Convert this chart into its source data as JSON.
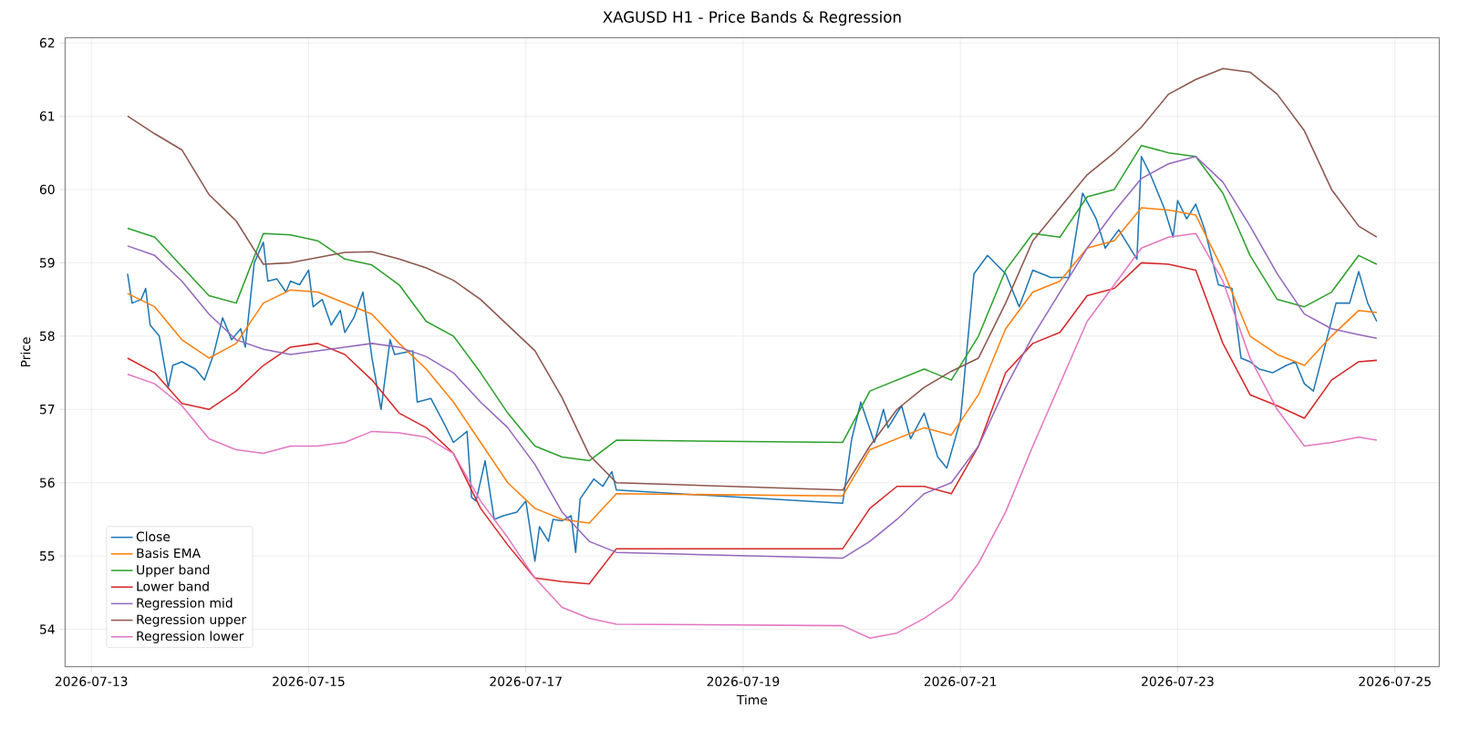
{
  "chart_data": {
    "type": "line",
    "title": "XAGUSD H1 - Price Bands & Regression",
    "xlabel": "Time",
    "ylabel": "Price",
    "x": [
      "2026-07-13T08:00",
      "2026-07-13T14:00",
      "2026-07-13T20:00",
      "2026-07-14T02:00",
      "2026-07-14T08:00",
      "2026-07-14T14:00",
      "2026-07-14T20:00",
      "2026-07-15T02:00",
      "2026-07-15T08:00",
      "2026-07-15T14:00",
      "2026-07-15T20:00",
      "2026-07-16T02:00",
      "2026-07-16T08:00",
      "2026-07-16T14:00",
      "2026-07-16T20:00",
      "2026-07-17T02:00",
      "2026-07-17T08:00",
      "2026-07-17T14:00",
      "2026-07-17T20:00",
      "2026-07-19T22:00",
      "2026-07-20T04:00",
      "2026-07-20T10:00",
      "2026-07-20T16:00",
      "2026-07-20T22:00",
      "2026-07-21T04:00",
      "2026-07-21T10:00",
      "2026-07-21T16:00",
      "2026-07-21T22:00",
      "2026-07-22T04:00",
      "2026-07-22T10:00",
      "2026-07-22T16:00",
      "2026-07-22T22:00",
      "2026-07-23T04:00",
      "2026-07-23T10:00",
      "2026-07-23T16:00",
      "2026-07-23T22:00",
      "2026-07-24T04:00",
      "2026-07-24T10:00",
      "2026-07-24T16:00",
      "2026-07-24T20:00"
    ],
    "series": [
      {
        "name": "Close",
        "color": "#1f77b4",
        "x": [
          "2026-07-13T08:00",
          "2026-07-13T09:00",
          "2026-07-13T11:00",
          "2026-07-13T12:00",
          "2026-07-13T13:00",
          "2026-07-13T15:00",
          "2026-07-13T17:00",
          "2026-07-13T18:00",
          "2026-07-13T20:00",
          "2026-07-13T23:00",
          "2026-07-14T01:00",
          "2026-07-14T03:00",
          "2026-07-14T05:00",
          "2026-07-14T07:00",
          "2026-07-14T09:00",
          "2026-07-14T10:00",
          "2026-07-14T12:00",
          "2026-07-14T14:00",
          "2026-07-14T15:00",
          "2026-07-14T17:00",
          "2026-07-14T19:00",
          "2026-07-14T20:00",
          "2026-07-14T22:00",
          "2026-07-15T00:00",
          "2026-07-15T01:00",
          "2026-07-15T03:00",
          "2026-07-15T05:00",
          "2026-07-15T07:00",
          "2026-07-15T08:00",
          "2026-07-15T10:00",
          "2026-07-15T12:00",
          "2026-07-15T14:00",
          "2026-07-15T16:00",
          "2026-07-15T18:00",
          "2026-07-15T19:00",
          "2026-07-15T23:00",
          "2026-07-16T00:00",
          "2026-07-16T03:00",
          "2026-07-16T06:00",
          "2026-07-16T08:00",
          "2026-07-16T11:00",
          "2026-07-16T12:00",
          "2026-07-16T13:00",
          "2026-07-16T15:00",
          "2026-07-16T17:00",
          "2026-07-16T19:00",
          "2026-07-16T22:00",
          "2026-07-17T00:00",
          "2026-07-17T02:00",
          "2026-07-17T03:00",
          "2026-07-17T05:00",
          "2026-07-17T06:00",
          "2026-07-17T08:00",
          "2026-07-17T10:00",
          "2026-07-17T11:00",
          "2026-07-17T12:00",
          "2026-07-17T15:00",
          "2026-07-17T17:00",
          "2026-07-17T19:00",
          "2026-07-17T20:00",
          "2026-07-19T22:00",
          "2026-07-20T00:00",
          "2026-07-20T02:00",
          "2026-07-20T05:00",
          "2026-07-20T07:00",
          "2026-07-20T08:00",
          "2026-07-20T11:00",
          "2026-07-20T13:00",
          "2026-07-20T16:00",
          "2026-07-20T19:00",
          "2026-07-20T21:00",
          "2026-07-21T00:00",
          "2026-07-21T03:00",
          "2026-07-21T06:00",
          "2026-07-21T10:00",
          "2026-07-21T13:00",
          "2026-07-21T16:00",
          "2026-07-21T20:00",
          "2026-07-22T00:00",
          "2026-07-22T03:00",
          "2026-07-22T06:00",
          "2026-07-22T08:00",
          "2026-07-22T11:00",
          "2026-07-22T13:00",
          "2026-07-22T15:00",
          "2026-07-22T16:00",
          "2026-07-22T18:00",
          "2026-07-22T21:00",
          "2026-07-22T23:00",
          "2026-07-23T00:00",
          "2026-07-23T02:00",
          "2026-07-23T04:00",
          "2026-07-23T06:00",
          "2026-07-23T09:00",
          "2026-07-23T12:00",
          "2026-07-23T14:00",
          "2026-07-23T16:00",
          "2026-07-23T18:00",
          "2026-07-23T21:00",
          "2026-07-24T00:00",
          "2026-07-24T02:00",
          "2026-07-24T04:00",
          "2026-07-24T06:00",
          "2026-07-24T11:00",
          "2026-07-24T14:00",
          "2026-07-24T16:00",
          "2026-07-24T18:00",
          "2026-07-24T20:00"
        ],
        "values": [
          58.85,
          58.45,
          58.5,
          58.65,
          58.15,
          58.0,
          57.3,
          57.6,
          57.65,
          57.55,
          57.4,
          57.75,
          58.25,
          57.95,
          58.1,
          57.85,
          59.0,
          59.28,
          58.75,
          58.78,
          58.6,
          58.75,
          58.7,
          58.9,
          58.4,
          58.5,
          58.15,
          58.35,
          58.05,
          58.25,
          58.6,
          57.7,
          57.0,
          57.95,
          57.75,
          57.8,
          57.1,
          57.15,
          56.8,
          56.55,
          56.7,
          55.8,
          55.75,
          56.3,
          55.5,
          55.55,
          55.6,
          55.75,
          54.93,
          55.4,
          55.2,
          55.5,
          55.48,
          55.55,
          55.05,
          55.78,
          56.05,
          55.95,
          56.15,
          55.9,
          55.72,
          56.6,
          57.1,
          56.55,
          57.0,
          56.75,
          57.05,
          56.6,
          56.95,
          56.35,
          56.2,
          56.85,
          58.85,
          59.1,
          58.85,
          58.4,
          58.9,
          58.8,
          58.8,
          59.95,
          59.6,
          59.2,
          59.45,
          59.25,
          59.05,
          60.45,
          60.2,
          59.75,
          59.35,
          59.85,
          59.6,
          59.8,
          59.45,
          58.7,
          58.65,
          57.7,
          57.65,
          57.55,
          57.5,
          57.6,
          57.65,
          57.35,
          57.25,
          58.45,
          58.45,
          58.88,
          58.45,
          58.2
        ]
      },
      {
        "name": "Basis EMA",
        "color": "#ff7f0e",
        "values": [
          58.58,
          58.4,
          57.95,
          57.7,
          57.9,
          58.45,
          58.63,
          58.6,
          58.45,
          58.3,
          57.9,
          57.55,
          57.1,
          56.55,
          56.0,
          55.65,
          55.5,
          55.45,
          55.85,
          55.82,
          56.45,
          56.6,
          56.75,
          56.65,
          57.2,
          58.1,
          58.6,
          58.75,
          59.2,
          59.3,
          59.75,
          59.72,
          59.65,
          58.9,
          58.0,
          57.75,
          57.6,
          58.0,
          58.35,
          58.32
        ]
      },
      {
        "name": "Upper band",
        "color": "#2ca02c",
        "values": [
          59.47,
          59.35,
          58.95,
          58.55,
          58.45,
          59.4,
          59.38,
          59.3,
          59.05,
          58.97,
          58.7,
          58.2,
          58.0,
          57.5,
          56.95,
          56.5,
          56.35,
          56.3,
          56.58,
          56.55,
          57.25,
          57.4,
          57.55,
          57.4,
          58.0,
          58.9,
          59.4,
          59.35,
          59.9,
          60.0,
          60.6,
          60.5,
          60.45,
          59.95,
          59.1,
          58.5,
          58.4,
          58.6,
          59.1,
          58.98
        ]
      },
      {
        "name": "Lower band",
        "color": "#d62728",
        "values": [
          57.7,
          57.5,
          57.08,
          57.0,
          57.25,
          57.6,
          57.85,
          57.9,
          57.75,
          57.4,
          56.95,
          56.75,
          56.4,
          55.65,
          55.15,
          54.7,
          54.65,
          54.62,
          55.1,
          55.1,
          55.65,
          55.95,
          55.95,
          55.85,
          56.5,
          57.5,
          57.9,
          58.05,
          58.55,
          58.65,
          59.0,
          58.98,
          58.9,
          57.9,
          57.2,
          57.05,
          56.88,
          57.4,
          57.65,
          57.67
        ]
      },
      {
        "name": "Regression mid",
        "color": "#9467bd",
        "values": [
          59.23,
          59.1,
          58.75,
          58.3,
          57.95,
          57.82,
          57.75,
          57.8,
          57.85,
          57.9,
          57.85,
          57.72,
          57.5,
          57.1,
          56.75,
          56.25,
          55.6,
          55.2,
          55.05,
          54.97,
          55.2,
          55.5,
          55.85,
          56.0,
          56.5,
          57.3,
          58.0,
          58.6,
          59.2,
          59.7,
          60.15,
          60.35,
          60.45,
          60.1,
          59.5,
          58.85,
          58.3,
          58.1,
          58.02,
          57.97
        ]
      },
      {
        "name": "Regression upper",
        "color": "#8c564b",
        "values": [
          61.0,
          60.76,
          60.54,
          59.93,
          59.57,
          58.98,
          59.0,
          59.07,
          59.14,
          59.15,
          59.05,
          58.93,
          58.76,
          58.5,
          58.15,
          57.8,
          57.16,
          56.38,
          56.0,
          55.9,
          56.5,
          57.0,
          57.3,
          57.52,
          57.7,
          58.45,
          59.3,
          59.75,
          60.2,
          60.5,
          60.85,
          61.3,
          61.5,
          61.65,
          61.6,
          61.3,
          60.8,
          60.0,
          59.5,
          59.35
        ]
      },
      {
        "name": "Regression lower",
        "color": "#e377c2",
        "values": [
          57.48,
          57.35,
          57.05,
          56.6,
          56.45,
          56.4,
          56.5,
          56.5,
          56.55,
          56.7,
          56.68,
          56.62,
          56.4,
          55.75,
          55.25,
          54.7,
          54.3,
          54.15,
          54.07,
          54.05,
          53.88,
          53.95,
          54.15,
          54.4,
          54.9,
          55.6,
          56.5,
          57.35,
          58.2,
          58.7,
          59.2,
          59.35,
          59.4,
          58.75,
          57.7,
          57.0,
          56.5,
          56.55,
          56.62,
          56.58
        ]
      }
    ],
    "xlim": [
      "2026-07-12T18:12",
      "2026-07-25T09:48"
    ],
    "ylim": [
      53.49,
      62.07
    ],
    "xticks": [
      "2026-07-13",
      "2026-07-15",
      "2026-07-17",
      "2026-07-19",
      "2026-07-21",
      "2026-07-23",
      "2026-07-25"
    ],
    "yticks": [
      54,
      55,
      56,
      57,
      58,
      59,
      60,
      61,
      62
    ],
    "grid": true,
    "legend": "bottom left",
    "line_style": "solid"
  }
}
